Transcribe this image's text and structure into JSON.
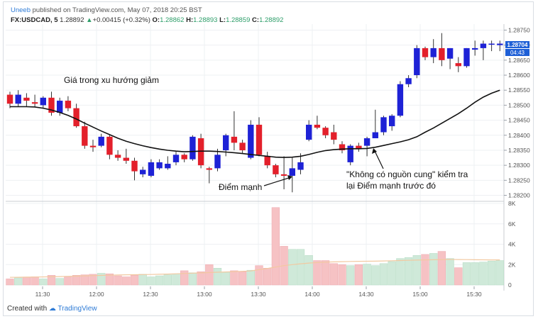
{
  "header": {
    "author": "Uneeb",
    "published": "published on TradingView.com, May 07, 2018 20:25 BST",
    "symbol": "FX:USDCAD, 5",
    "last": "1.28892",
    "change": "+0.00415 (+0.32%)",
    "o_label": "O:",
    "o_value": "1.28862",
    "h_label": "H:",
    "h_value": "1.28893",
    "l_label": "L:",
    "l_value": "1.28859",
    "c_label": "C:",
    "c_value": "1.28892"
  },
  "footer": {
    "created_with": "Created with",
    "brand": "TradingView"
  },
  "annotations": {
    "downtrend": "Giá trong xu hướng giảm",
    "strong_point": "Điểm mạnh",
    "no_supply_1": "\"Không có nguồn cung\" kiểm tra",
    "no_supply_2": "lại Điểm mạnh trước đó"
  },
  "price_badge": {
    "price": "1.28704",
    "countdown": "04:43"
  },
  "colors": {
    "up": "#1e22d6",
    "down": "#e3202b",
    "vol_up": "#cfe9d9",
    "vol_down": "#f6c2c4",
    "ma": "#111111",
    "vol_ma": "#f2c9a1",
    "badge": "#1e5fd6"
  },
  "chart_data": [
    {
      "type": "candlestick",
      "y_ticks": [
        "1.28750",
        "1.28700",
        "1.28650",
        "1.28600",
        "1.28550",
        "1.28500",
        "1.28450",
        "1.28400",
        "1.28350",
        "1.28300",
        "1.28250",
        "1.28200"
      ],
      "ylim": [
        1.2818,
        1.2877
      ],
      "x_ticks": [
        "11:30",
        "12:00",
        "12:30",
        "13:00",
        "13:30",
        "14:00",
        "14:30",
        "15:00",
        "15:30"
      ],
      "candles": [
        {
          "o": 1.28535,
          "h": 1.28545,
          "l": 1.2849,
          "c": 1.28505
        },
        {
          "o": 1.28505,
          "h": 1.2855,
          "l": 1.28495,
          "c": 1.28535
        },
        {
          "o": 1.28525,
          "h": 1.2854,
          "l": 1.28495,
          "c": 1.28515
        },
        {
          "o": 1.2851,
          "h": 1.28535,
          "l": 1.28495,
          "c": 1.28505
        },
        {
          "o": 1.285,
          "h": 1.2853,
          "l": 1.2849,
          "c": 1.28525
        },
        {
          "o": 1.28525,
          "h": 1.28545,
          "l": 1.28465,
          "c": 1.28475
        },
        {
          "o": 1.28475,
          "h": 1.28525,
          "l": 1.28465,
          "c": 1.28515
        },
        {
          "o": 1.28515,
          "h": 1.2853,
          "l": 1.2848,
          "c": 1.2849
        },
        {
          "o": 1.2849,
          "h": 1.28505,
          "l": 1.28425,
          "c": 1.2843
        },
        {
          "o": 1.2843,
          "h": 1.28445,
          "l": 1.28355,
          "c": 1.28365
        },
        {
          "o": 1.28365,
          "h": 1.28385,
          "l": 1.28345,
          "c": 1.2836
        },
        {
          "o": 1.28365,
          "h": 1.28405,
          "l": 1.2836,
          "c": 1.28395
        },
        {
          "o": 1.28395,
          "h": 1.284,
          "l": 1.2832,
          "c": 1.28335
        },
        {
          "o": 1.28335,
          "h": 1.2835,
          "l": 1.28315,
          "c": 1.28325
        },
        {
          "o": 1.28325,
          "h": 1.28355,
          "l": 1.28305,
          "c": 1.28315
        },
        {
          "o": 1.28315,
          "h": 1.28325,
          "l": 1.2825,
          "c": 1.2828
        },
        {
          "o": 1.2827,
          "h": 1.28295,
          "l": 1.2826,
          "c": 1.28285
        },
        {
          "o": 1.28265,
          "h": 1.2832,
          "l": 1.2826,
          "c": 1.2831
        },
        {
          "o": 1.2829,
          "h": 1.2832,
          "l": 1.28285,
          "c": 1.2831
        },
        {
          "o": 1.2829,
          "h": 1.2833,
          "l": 1.28285,
          "c": 1.28305
        },
        {
          "o": 1.2831,
          "h": 1.28345,
          "l": 1.283,
          "c": 1.28335
        },
        {
          "o": 1.28335,
          "h": 1.2834,
          "l": 1.2831,
          "c": 1.2832
        },
        {
          "o": 1.2832,
          "h": 1.284,
          "l": 1.28315,
          "c": 1.28395
        },
        {
          "o": 1.2839,
          "h": 1.28405,
          "l": 1.2829,
          "c": 1.283
        },
        {
          "o": 1.2829,
          "h": 1.28295,
          "l": 1.2824,
          "c": 1.28285
        },
        {
          "o": 1.2829,
          "h": 1.28355,
          "l": 1.2828,
          "c": 1.28335
        },
        {
          "o": 1.2835,
          "h": 1.28405,
          "l": 1.2833,
          "c": 1.284
        },
        {
          "o": 1.28395,
          "h": 1.2848,
          "l": 1.2835,
          "c": 1.28375
        },
        {
          "o": 1.28375,
          "h": 1.28385,
          "l": 1.2834,
          "c": 1.2835
        },
        {
          "o": 1.28325,
          "h": 1.2845,
          "l": 1.2832,
          "c": 1.28435
        },
        {
          "o": 1.28435,
          "h": 1.2846,
          "l": 1.2833,
          "c": 1.28335
        },
        {
          "o": 1.2833,
          "h": 1.28345,
          "l": 1.2829,
          "c": 1.283
        },
        {
          "o": 1.283,
          "h": 1.28305,
          "l": 1.2826,
          "c": 1.2827
        },
        {
          "o": 1.2827,
          "h": 1.2833,
          "l": 1.2822,
          "c": 1.28265
        },
        {
          "o": 1.28265,
          "h": 1.28325,
          "l": 1.2821,
          "c": 1.2829
        },
        {
          "o": 1.28285,
          "h": 1.2834,
          "l": 1.2827,
          "c": 1.2831
        },
        {
          "o": 1.28385,
          "h": 1.2845,
          "l": 1.2838,
          "c": 1.28435
        },
        {
          "o": 1.28435,
          "h": 1.28465,
          "l": 1.2842,
          "c": 1.28425
        },
        {
          "o": 1.28425,
          "h": 1.2843,
          "l": 1.2839,
          "c": 1.284
        },
        {
          "o": 1.2841,
          "h": 1.28435,
          "l": 1.2837,
          "c": 1.28385
        },
        {
          "o": 1.2837,
          "h": 1.2838,
          "l": 1.2834,
          "c": 1.2835
        },
        {
          "o": 1.2831,
          "h": 1.2837,
          "l": 1.283,
          "c": 1.28365
        },
        {
          "o": 1.28365,
          "h": 1.28375,
          "l": 1.28345,
          "c": 1.28355
        },
        {
          "o": 1.28365,
          "h": 1.28395,
          "l": 1.2833,
          "c": 1.2839
        },
        {
          "o": 1.2839,
          "h": 1.28485,
          "l": 1.2839,
          "c": 1.2841
        },
        {
          "o": 1.2841,
          "h": 1.28465,
          "l": 1.284,
          "c": 1.2846
        },
        {
          "o": 1.2843,
          "h": 1.2847,
          "l": 1.28415,
          "c": 1.28465
        },
        {
          "o": 1.28465,
          "h": 1.2858,
          "l": 1.2846,
          "c": 1.2857
        },
        {
          "o": 1.2857,
          "h": 1.286,
          "l": 1.2856,
          "c": 1.2859
        },
        {
          "o": 1.286,
          "h": 1.287,
          "l": 1.2859,
          "c": 1.2869
        },
        {
          "o": 1.2869,
          "h": 1.28695,
          "l": 1.2865,
          "c": 1.2866
        },
        {
          "o": 1.2866,
          "h": 1.2872,
          "l": 1.2864,
          "c": 1.2869
        },
        {
          "o": 1.2869,
          "h": 1.2874,
          "l": 1.2863,
          "c": 1.2865
        },
        {
          "o": 1.28655,
          "h": 1.2869,
          "l": 1.2862,
          "c": 1.2869
        },
        {
          "o": 1.2864,
          "h": 1.2866,
          "l": 1.2861,
          "c": 1.2863
        },
        {
          "o": 1.2863,
          "h": 1.2869,
          "l": 1.28625,
          "c": 1.2869
        },
        {
          "o": 1.28685,
          "h": 1.28715,
          "l": 1.28665,
          "c": 1.2869
        },
        {
          "o": 1.2869,
          "h": 1.28715,
          "l": 1.2865,
          "c": 1.28705
        },
        {
          "o": 1.28705,
          "h": 1.28715,
          "l": 1.2868,
          "c": 1.28705
        },
        {
          "o": 1.287,
          "h": 1.28715,
          "l": 1.2868,
          "c": 1.28705
        }
      ],
      "ma": [
        1.28495,
        1.28495,
        1.28495,
        1.28494,
        1.2849,
        1.28484,
        1.28476,
        1.28466,
        1.28454,
        1.2844,
        1.28427,
        1.28414,
        1.28402,
        1.2839,
        1.2838,
        1.28372,
        1.28365,
        1.28359,
        1.28354,
        1.2835,
        1.28347,
        1.28345,
        1.28346,
        1.28347,
        1.28347,
        1.28346,
        1.28344,
        1.28342,
        1.28339,
        1.28336,
        1.28333,
        1.2833,
        1.28327,
        1.28326,
        1.28327,
        1.2833,
        1.28336,
        1.28343,
        1.28349,
        1.28352,
        1.28354,
        1.28355,
        1.28355,
        1.28356,
        1.2836,
        1.28366,
        1.28372,
        1.28378,
        1.28385,
        1.28395,
        1.2841,
        1.28424,
        1.2844,
        1.28456,
        1.28472,
        1.2849,
        1.2851,
        1.28527,
        1.2854,
        1.2855
      ]
    },
    {
      "type": "bar",
      "name": "volume",
      "y_ticks": [
        "8K",
        "6K",
        "4K",
        "2K",
        "0"
      ],
      "ylim": [
        0,
        8000
      ],
      "values": [
        600,
        700,
        750,
        800,
        600,
        950,
        650,
        800,
        950,
        1000,
        1050,
        1150,
        1100,
        900,
        800,
        950,
        1050,
        800,
        900,
        1000,
        1100,
        1400,
        1200,
        1300,
        2000,
        1650,
        1250,
        1400,
        1300,
        1450,
        1900,
        1650,
        7600,
        3800,
        3500,
        3500,
        2900,
        2400,
        2400,
        2100,
        2000,
        1900,
        2000,
        2050,
        1900,
        2100,
        2300,
        2600,
        2700,
        2900,
        3000,
        3100,
        3300,
        2600,
        1700,
        2200,
        2200,
        2250,
        2350,
        2400
      ],
      "ma": [
        750,
        760,
        770,
        780,
        790,
        810,
        830,
        850,
        870,
        890,
        920,
        940,
        960,
        980,
        1000,
        1010,
        1020,
        1030,
        1050,
        1070,
        1100,
        1130,
        1160,
        1190,
        1220,
        1250,
        1280,
        1310,
        1340,
        1380,
        1500,
        1620,
        1760,
        1900,
        2000,
        2080,
        2150,
        2200,
        2240,
        2270,
        2290,
        2310,
        2320,
        2330,
        2340,
        2360,
        2380,
        2400,
        2420,
        2440,
        2460,
        2480,
        2500,
        2510,
        2500,
        2490,
        2480,
        2470,
        2460,
        2460
      ]
    }
  ]
}
